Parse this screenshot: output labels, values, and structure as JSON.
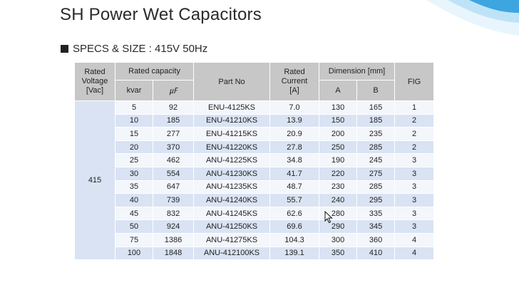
{
  "title": "SH Power Wet Capacitors",
  "subtitle": "SPECS & SIZE : 415V 50Hz",
  "subtitle_icon": "black-square-icon",
  "colors": {
    "header_bg": "#c7c7c7",
    "row_blue": "#d9e3f3",
    "row_light": "#f3f6fb",
    "accent": "#3da6e0"
  },
  "table": {
    "headers": {
      "rated_voltage": "Rated Voltage [Vac]",
      "rated_capacity": "Rated capacity",
      "kvar": "kvar",
      "uf": "㎌",
      "part_no": "Part No",
      "rated_current": "Rated Current [A]",
      "dimension": "Dimension [mm]",
      "dim_a": "A",
      "dim_b": "B",
      "fig": "FIG"
    },
    "voltage": "415",
    "rows": [
      {
        "kvar": "5",
        "uf": "92",
        "part_no": "ENU-4125KS",
        "current": "7.0",
        "a": "130",
        "b": "165",
        "fig": "1"
      },
      {
        "kvar": "10",
        "uf": "185",
        "part_no": "ENU-41210KS",
        "current": "13.9",
        "a": "150",
        "b": "185",
        "fig": "2"
      },
      {
        "kvar": "15",
        "uf": "277",
        "part_no": "ENU-41215KS",
        "current": "20.9",
        "a": "200",
        "b": "235",
        "fig": "2"
      },
      {
        "kvar": "20",
        "uf": "370",
        "part_no": "ENU-41220KS",
        "current": "27.8",
        "a": "250",
        "b": "285",
        "fig": "2"
      },
      {
        "kvar": "25",
        "uf": "462",
        "part_no": "ANU-41225KS",
        "current": "34.8",
        "a": "190",
        "b": "245",
        "fig": "3"
      },
      {
        "kvar": "30",
        "uf": "554",
        "part_no": "ANU-41230KS",
        "current": "41.7",
        "a": "220",
        "b": "275",
        "fig": "3"
      },
      {
        "kvar": "35",
        "uf": "647",
        "part_no": "ANU-41235KS",
        "current": "48.7",
        "a": "230",
        "b": "285",
        "fig": "3"
      },
      {
        "kvar": "40",
        "uf": "739",
        "part_no": "ANU-41240KS",
        "current": "55.7",
        "a": "240",
        "b": "295",
        "fig": "3"
      },
      {
        "kvar": "45",
        "uf": "832",
        "part_no": "ANU-41245KS",
        "current": "62.6",
        "a": "280",
        "b": "335",
        "fig": "3"
      },
      {
        "kvar": "50",
        "uf": "924",
        "part_no": "ANU-41250KS",
        "current": "69.6",
        "a": "290",
        "b": "345",
        "fig": "3"
      },
      {
        "kvar": "75",
        "uf": "1386",
        "part_no": "ANU-41275KS",
        "current": "104.3",
        "a": "300",
        "b": "360",
        "fig": "4"
      },
      {
        "kvar": "100",
        "uf": "1848",
        "part_no": "ANU-412100KS",
        "current": "139.1",
        "a": "350",
        "b": "410",
        "fig": "4"
      }
    ]
  }
}
